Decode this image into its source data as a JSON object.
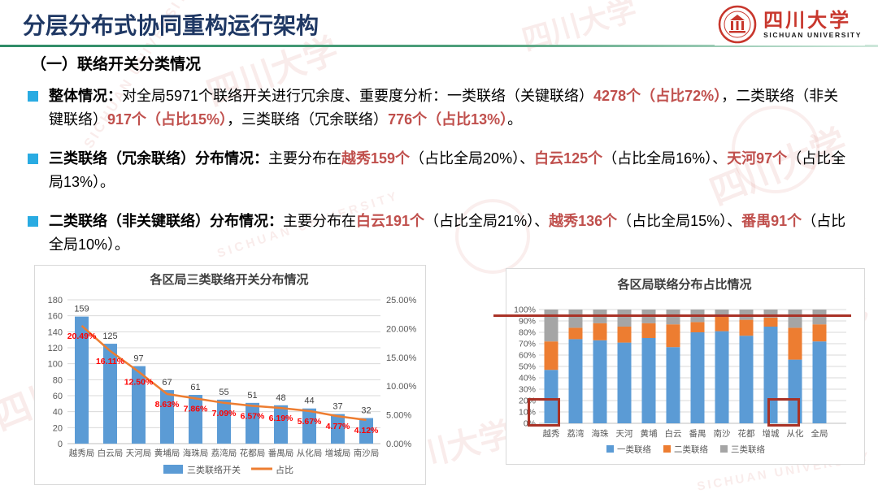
{
  "header": {
    "title": "分层分布式协同重构运行架构"
  },
  "logo": {
    "cn": "四川大学",
    "en": "SICHUAN UNIVERSITY"
  },
  "watermark": {
    "cn": "四川大学",
    "en": "SICHUAN UNIVERSITY"
  },
  "section_heading": "（一）联络开关分类情况",
  "bullets": [
    {
      "segments": [
        {
          "t": "整体情况：",
          "s": "bold"
        },
        {
          "t": "对全局5971个联络开关进行冗余度、重要度分析：一类联络（关键联络）",
          "s": "normal"
        },
        {
          "t": "4278个（占比72%）",
          "s": "red"
        },
        {
          "t": "，二类联络（非关键联络）",
          "s": "normal"
        },
        {
          "t": "917个（占比15%）",
          "s": "red"
        },
        {
          "t": "，三类联络（冗余联络）",
          "s": "normal"
        },
        {
          "t": "776个（占比13%）",
          "s": "red"
        },
        {
          "t": "。",
          "s": "normal"
        }
      ]
    },
    {
      "segments": [
        {
          "t": "三类联络（冗余联络）分布情况：",
          "s": "bold"
        },
        {
          "t": "主要分布在",
          "s": "normal"
        },
        {
          "t": "越秀159个",
          "s": "red"
        },
        {
          "t": "（占比全局20%）、",
          "s": "normal"
        },
        {
          "t": "白云125个",
          "s": "red"
        },
        {
          "t": "（占比全局16%）、",
          "s": "normal"
        },
        {
          "t": "天河97个",
          "s": "red"
        },
        {
          "t": "（占比全局13%）。",
          "s": "normal"
        }
      ]
    },
    {
      "segments": [
        {
          "t": "二类联络（非关键联络）分布情况：",
          "s": "bold"
        },
        {
          "t": "主要分布在",
          "s": "normal"
        },
        {
          "t": "白云191个",
          "s": "red"
        },
        {
          "t": "（占比全局21%）、",
          "s": "normal"
        },
        {
          "t": "越秀136个",
          "s": "red"
        },
        {
          "t": "（占比全局15%）、",
          "s": "normal"
        },
        {
          "t": "番禺91个",
          "s": "red"
        },
        {
          "t": "（占比全局10%）。",
          "s": "normal"
        }
      ]
    }
  ],
  "chart_data": [
    {
      "type": "bar",
      "subtype": "combo-bar-line",
      "title": "各区局三类联络开关分布情况",
      "categories": [
        "越秀局",
        "白云局",
        "天河局",
        "黄埔局",
        "海珠局",
        "荔湾局",
        "花都局",
        "番禺局",
        "从化局",
        "增城局",
        "南沙局"
      ],
      "series": [
        {
          "name": "三类联络开关",
          "type": "bar",
          "color": "#5B9BD5",
          "values": [
            159,
            125,
            97,
            67,
            61,
            55,
            51,
            48,
            44,
            37,
            32
          ]
        },
        {
          "name": "占比",
          "type": "line",
          "color": "#ED7D31",
          "label_color": "#FF0000",
          "axis": "right",
          "values": [
            20.49,
            16.11,
            12.5,
            8.63,
            7.86,
            7.09,
            6.57,
            6.19,
            5.67,
            4.77,
            4.12
          ]
        }
      ],
      "left_axis": {
        "min": 0,
        "max": 180,
        "step": 20
      },
      "right_axis": {
        "min": 0,
        "max": 25,
        "step": 5,
        "suffix": "%"
      },
      "grid": true,
      "legend_position": "bottom"
    },
    {
      "type": "bar",
      "subtype": "stacked-100",
      "title": "各区局联络分布占比情况",
      "categories": [
        "越秀",
        "荔湾",
        "海珠",
        "天河",
        "黄埔",
        "白云",
        "番禺",
        "南沙",
        "花都",
        "增城",
        "从化",
        "全局"
      ],
      "series": [
        {
          "name": "一类联络",
          "color": "#5B9BD5",
          "values": [
            47,
            74,
            73,
            71,
            75,
            67,
            80,
            81,
            77,
            85,
            56,
            72
          ]
        },
        {
          "name": "二类联络",
          "color": "#ED7D31",
          "values": [
            25,
            10,
            15,
            14,
            13,
            20,
            9,
            13,
            14,
            8,
            28,
            15
          ]
        },
        {
          "name": "三类联络",
          "color": "#A5A5A5",
          "values": [
            28,
            16,
            12,
            15,
            12,
            13,
            11,
            6,
            9,
            7,
            16,
            13
          ]
        }
      ],
      "y_axis": {
        "min": 0,
        "max": 100,
        "step": 10,
        "suffix": "%"
      },
      "grid": true,
      "legend_position": "bottom",
      "annotations": {
        "reference_line_at_percent": 97,
        "color": "#A93226",
        "highlight_boxes_at": [
          "越秀 10%-20%",
          "从化 10%-20%"
        ]
      }
    }
  ],
  "colors": {
    "title_navy": "#1F3864",
    "bullet_cyan": "#29ABE2",
    "text_red": "#C0504D",
    "annotation_red": "#A93226",
    "bar_blue": "#5B9BD5",
    "line_orange": "#ED7D31",
    "stack_gray": "#A5A5A5",
    "divider_green": "#2f8c67"
  }
}
